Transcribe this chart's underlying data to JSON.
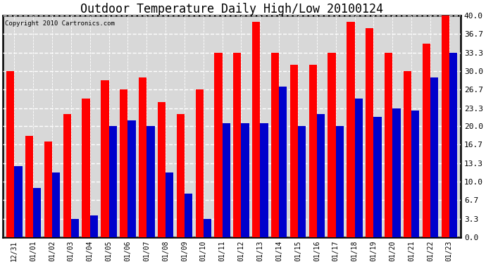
{
  "title": "Outdoor Temperature Daily High/Low 20100124",
  "copyright_text": "Copyright 2010 Cartronics.com",
  "categories": [
    "12/31",
    "01/01",
    "01/02",
    "01/03",
    "01/04",
    "01/05",
    "01/06",
    "01/07",
    "01/08",
    "01/09",
    "01/10",
    "01/11",
    "01/12",
    "01/13",
    "01/14",
    "01/15",
    "01/16",
    "01/17",
    "01/18",
    "01/19",
    "01/20",
    "01/21",
    "01/22",
    "01/23"
  ],
  "high_values": [
    30.0,
    18.3,
    17.2,
    22.2,
    25.0,
    28.3,
    26.7,
    28.9,
    24.4,
    22.2,
    26.7,
    33.3,
    33.3,
    38.9,
    33.3,
    31.1,
    31.1,
    33.3,
    38.9,
    37.8,
    33.3,
    30.0,
    35.0,
    40.0
  ],
  "low_values": [
    12.8,
    8.9,
    11.7,
    3.3,
    3.9,
    20.0,
    21.1,
    20.0,
    11.7,
    7.8,
    3.3,
    20.6,
    20.6,
    20.6,
    27.2,
    20.0,
    22.2,
    20.0,
    25.0,
    21.7,
    23.3,
    22.8,
    28.9,
    33.3
  ],
  "high_color": "#ff0000",
  "low_color": "#0000cc",
  "background_color": "#ffffff",
  "plot_bg_color": "#d8d8d8",
  "ylim": [
    0,
    40
  ],
  "yticks": [
    0.0,
    3.3,
    6.7,
    10.0,
    13.3,
    16.7,
    20.0,
    23.3,
    26.7,
    30.0,
    33.3,
    36.7,
    40.0
  ],
  "ylabel_fontsize": 8,
  "xlabel_fontsize": 7,
  "title_fontsize": 12,
  "bar_width": 0.42,
  "figsize": [
    6.9,
    3.75
  ],
  "dpi": 100
}
